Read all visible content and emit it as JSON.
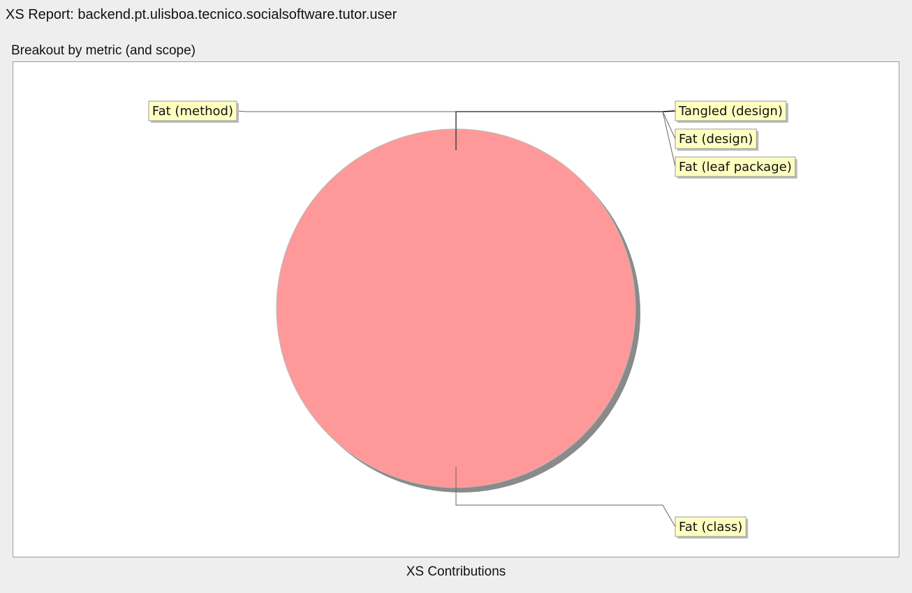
{
  "window": {
    "title": "XS Report: backend.pt.ulisboa.tecnico.socialsoftware.tutor.user"
  },
  "panel": {
    "title": "Breakout by metric (and scope)",
    "caption": "XS Contributions"
  },
  "chart_data": {
    "type": "pie",
    "title": "Breakout by metric (and scope)",
    "xlabel": "XS Contributions",
    "legend": "none",
    "categories": [
      "Tangled (design)",
      "Fat (design)",
      "Fat (leaf package)",
      "Fat (class)",
      "Fat (method)"
    ],
    "values": [
      0,
      0,
      0,
      100,
      0
    ],
    "colors": {
      "Fat (class)": "#ff9999"
    },
    "label_background": "#ffffc0",
    "shadow": true
  }
}
